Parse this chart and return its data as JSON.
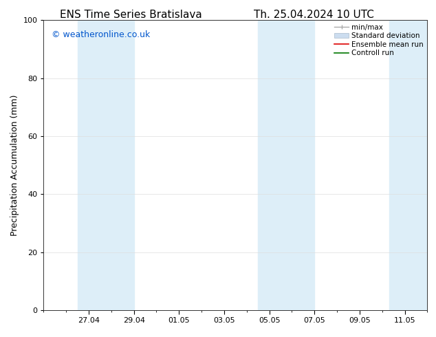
{
  "title_left": "ENS Time Series Bratislava",
  "title_right": "Th. 25.04.2024 10 UTC",
  "ylabel": "Precipitation Accumulation (mm)",
  "watermark": "© weatheronline.co.uk",
  "watermark_color": "#0055cc",
  "ylim": [
    0,
    100
  ],
  "yticks": [
    0,
    20,
    40,
    60,
    80,
    100
  ],
  "x_tick_labels": [
    "27.04",
    "29.04",
    "01.05",
    "03.05",
    "05.05",
    "07.05",
    "09.05",
    "11.05"
  ],
  "x_tick_positions": [
    2,
    4,
    6,
    8,
    10,
    12,
    14,
    16
  ],
  "shaded_bands": [
    {
      "x_start": 1.5,
      "x_end": 4.0
    },
    {
      "x_start": 9.5,
      "x_end": 12.0
    },
    {
      "x_start": 15.3,
      "x_end": 17.0
    }
  ],
  "shade_color": "#ddeef8",
  "background_color": "#ffffff",
  "title_fontsize": 11,
  "axis_label_fontsize": 9,
  "tick_fontsize": 8,
  "watermark_fontsize": 9,
  "legend_fontsize": 7.5,
  "grid_color": "#dddddd",
  "x_min": 0,
  "x_max": 17.0
}
